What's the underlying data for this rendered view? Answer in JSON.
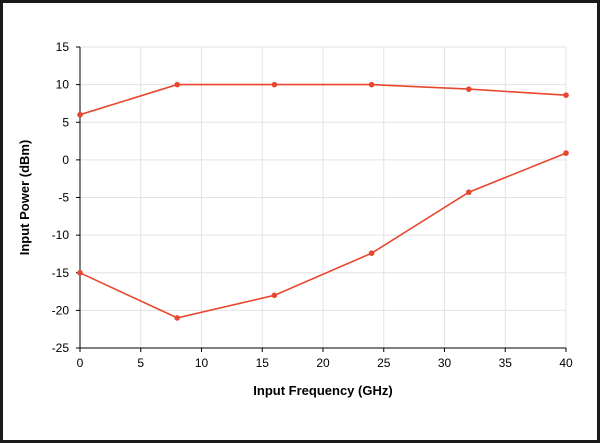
{
  "chart_data": {
    "type": "line",
    "title": "",
    "xlabel": "Input Frequency (GHz)",
    "ylabel": "Input Power (dBm)",
    "xlim": [
      0,
      40
    ],
    "ylim": [
      -25,
      15
    ],
    "x_ticks": [
      0,
      5,
      10,
      15,
      20,
      25,
      30,
      35,
      40
    ],
    "y_ticks": [
      15,
      10,
      5,
      0,
      -5,
      -10,
      -15,
      -20,
      -25
    ],
    "grid": true,
    "legend": "none",
    "series_color": "#e8472f",
    "series": [
      {
        "x": [
          0,
          8,
          16,
          24,
          32,
          40
        ],
        "y": [
          6,
          10,
          10,
          10,
          9.4,
          8.6
        ]
      },
      {
        "x": [
          0,
          8,
          16,
          24,
          32,
          40
        ],
        "y": [
          -15,
          -21,
          -18,
          -12.4,
          -4.3,
          0.9
        ]
      }
    ]
  }
}
